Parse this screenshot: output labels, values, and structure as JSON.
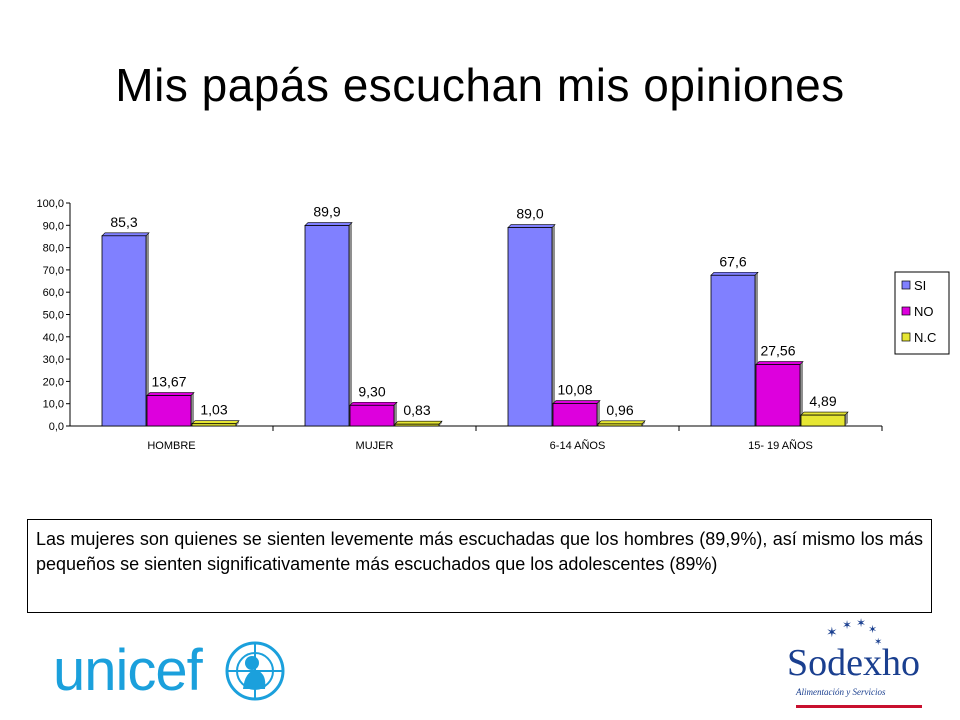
{
  "slide": {
    "title": "Mis papás escuchan mis opiniones",
    "note": "Las mujeres son quienes se sienten levemente más escuchadas que los hombres (89,9%), así mismo los más pequeños se sienten significativamente más escuchados que los adolescentes (89%)"
  },
  "logos": {
    "unicef": "unicef",
    "sodexho": "Sodexho",
    "sodexho_tagline": "Alimentación y Servicios"
  },
  "colors": {
    "SI": "#8080ff",
    "NO": "#dd00dd",
    "N.C": "#e6e633",
    "unicef_blue": "#1ba0dc",
    "sodexho_blue": "#1a3f8f"
  },
  "chart_data": {
    "type": "bar",
    "categories": [
      "HOMBRE",
      "MUJER",
      "6-14 AÑOS",
      "15- 19 AÑOS"
    ],
    "series": [
      {
        "name": "SI",
        "values": [
          85.3,
          89.9,
          89.0,
          67.6
        ],
        "labels": [
          "85,3",
          "89,9",
          "89,0",
          "67,6"
        ]
      },
      {
        "name": "NO",
        "values": [
          13.67,
          9.3,
          10.08,
          27.56
        ],
        "labels": [
          "13,67",
          "9,30",
          "10,08",
          "27,56"
        ]
      },
      {
        "name": "N.C",
        "values": [
          1.03,
          0.83,
          0.96,
          4.89
        ],
        "labels": [
          "1,03",
          "0,83",
          "0,96",
          "4,89"
        ]
      }
    ],
    "ylim": [
      0,
      100
    ],
    "yticks": [
      "0,0",
      "10,0",
      "20,0",
      "30,0",
      "40,0",
      "50,0",
      "60,0",
      "70,0",
      "80,0",
      "90,0",
      "100,0"
    ],
    "legend": "right",
    "grid": false
  }
}
